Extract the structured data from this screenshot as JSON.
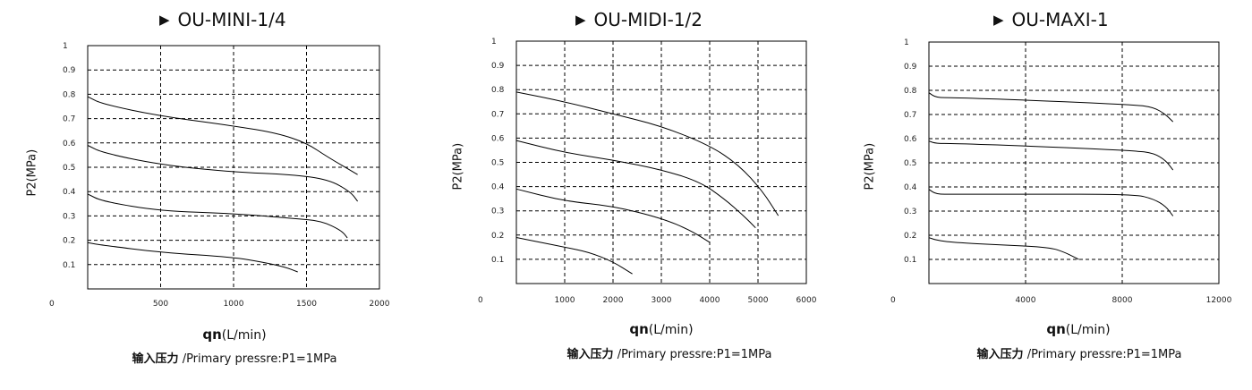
{
  "chart_data": [
    {
      "type": "line",
      "title": "OU-MINI-1/4",
      "xlabel_main": "qn",
      "xlabel_unit": "(L/min)",
      "ylabel": "P2(MPa)",
      "note_cn": "输入压力",
      "note_en": "/Primary pressre:P1=1MPa",
      "xlim": [
        0,
        2000
      ],
      "ylim": [
        0,
        1
      ],
      "x_ticks": [
        "0",
        "500",
        "1000",
        "1500",
        "2000"
      ],
      "y_ticks": [
        "0.1",
        "0.2",
        "0.3",
        "0.4",
        "0.5",
        "0.6",
        "0.7",
        "0.8",
        "0.9",
        "1"
      ],
      "grid": "dashed",
      "series": [
        {
          "points": [
            [
              0,
              0.79
            ],
            [
              100,
              0.76
            ],
            [
              500,
              0.71
            ],
            [
              1000,
              0.67
            ],
            [
              1300,
              0.64
            ],
            [
              1500,
              0.6
            ],
            [
              1650,
              0.54
            ],
            [
              1850,
              0.47
            ]
          ]
        },
        {
          "points": [
            [
              0,
              0.59
            ],
            [
              100,
              0.56
            ],
            [
              500,
              0.51
            ],
            [
              1000,
              0.48
            ],
            [
              1400,
              0.47
            ],
            [
              1650,
              0.45
            ],
            [
              1800,
              0.4
            ],
            [
              1850,
              0.36
            ]
          ]
        },
        {
          "points": [
            [
              0,
              0.39
            ],
            [
              100,
              0.36
            ],
            [
              500,
              0.32
            ],
            [
              1000,
              0.31
            ],
            [
              1400,
              0.29
            ],
            [
              1600,
              0.28
            ],
            [
              1740,
              0.24
            ],
            [
              1780,
              0.21
            ]
          ]
        },
        {
          "points": [
            [
              0,
              0.19
            ],
            [
              100,
              0.18
            ],
            [
              500,
              0.15
            ],
            [
              1000,
              0.13
            ],
            [
              1200,
              0.11
            ],
            [
              1350,
              0.09
            ],
            [
              1440,
              0.07
            ]
          ]
        }
      ]
    },
    {
      "type": "line",
      "title": "OU-MIDI-1/2",
      "xlabel_main": "qn",
      "xlabel_unit": "(L/min)",
      "ylabel": "P2(MPa)",
      "note_cn": "输入压力",
      "note_en": "/Primary pressre:P1=1MPa",
      "xlim": [
        0,
        6000
      ],
      "ylim": [
        0,
        1
      ],
      "x_ticks": [
        "0",
        "1000",
        "2000",
        "3000",
        "4000",
        "5000",
        "6000"
      ],
      "y_ticks": [
        "0.1",
        "0.2",
        "0.3",
        "0.4",
        "0.5",
        "0.6",
        "0.7",
        "0.8",
        "0.9",
        "1"
      ],
      "grid": "dashed",
      "series": [
        {
          "points": [
            [
              0,
              0.79
            ],
            [
              1000,
              0.75
            ],
            [
              2000,
              0.7
            ],
            [
              3000,
              0.65
            ],
            [
              4000,
              0.57
            ],
            [
              4600,
              0.49
            ],
            [
              5100,
              0.38
            ],
            [
              5420,
              0.28
            ]
          ]
        },
        {
          "points": [
            [
              0,
              0.59
            ],
            [
              1000,
              0.54
            ],
            [
              2000,
              0.51
            ],
            [
              3000,
              0.47
            ],
            [
              3800,
              0.42
            ],
            [
              4300,
              0.35
            ],
            [
              4700,
              0.28
            ],
            [
              4950,
              0.23
            ]
          ]
        },
        {
          "points": [
            [
              0,
              0.39
            ],
            [
              1000,
              0.34
            ],
            [
              2000,
              0.32
            ],
            [
              3000,
              0.27
            ],
            [
              3600,
              0.22
            ],
            [
              4000,
              0.17
            ]
          ]
        },
        {
          "points": [
            [
              0,
              0.19
            ],
            [
              500,
              0.17
            ],
            [
              1000,
              0.15
            ],
            [
              1500,
              0.13
            ],
            [
              2000,
              0.09
            ],
            [
              2400,
              0.04
            ]
          ]
        }
      ]
    },
    {
      "type": "line",
      "title": "OU-MAXI-1",
      "xlabel_main": "qn",
      "xlabel_unit": "(L/min)",
      "ylabel": "P2(MPa)",
      "note_cn": "输入压力",
      "note_en": "/Primary pressre:P1=1MPa",
      "xlim": [
        0,
        12000
      ],
      "ylim": [
        0,
        1
      ],
      "x_ticks": [
        "0",
        "4000",
        "8000",
        "12000"
      ],
      "x_tick_values": [
        0,
        4000,
        8000,
        12000
      ],
      "y_ticks": [
        "0.1",
        "0.2",
        "0.3",
        "0.4",
        "0.5",
        "0.6",
        "0.7",
        "0.8",
        "0.9",
        "1"
      ],
      "grid": "dashed",
      "series": [
        {
          "points": [
            [
              0,
              0.79
            ],
            [
              300,
              0.77
            ],
            [
              1000,
              0.77
            ],
            [
              4000,
              0.76
            ],
            [
              8500,
              0.74
            ],
            [
              9300,
              0.73
            ],
            [
              9800,
              0.7
            ],
            [
              10100,
              0.67
            ]
          ]
        },
        {
          "points": [
            [
              0,
              0.59
            ],
            [
              300,
              0.58
            ],
            [
              1000,
              0.58
            ],
            [
              4000,
              0.57
            ],
            [
              8500,
              0.55
            ],
            [
              9300,
              0.54
            ],
            [
              9800,
              0.51
            ],
            [
              10100,
              0.47
            ]
          ]
        },
        {
          "points": [
            [
              0,
              0.39
            ],
            [
              300,
              0.37
            ],
            [
              1000,
              0.37
            ],
            [
              4000,
              0.37
            ],
            [
              8500,
              0.37
            ],
            [
              9300,
              0.35
            ],
            [
              9800,
              0.32
            ],
            [
              10100,
              0.28
            ]
          ]
        },
        {
          "points": [
            [
              0,
              0.19
            ],
            [
              300,
              0.18
            ],
            [
              1000,
              0.17
            ],
            [
              3000,
              0.16
            ],
            [
              5000,
              0.15
            ],
            [
              5600,
              0.13
            ],
            [
              6000,
              0.11
            ],
            [
              6200,
              0.1
            ]
          ]
        }
      ]
    }
  ]
}
